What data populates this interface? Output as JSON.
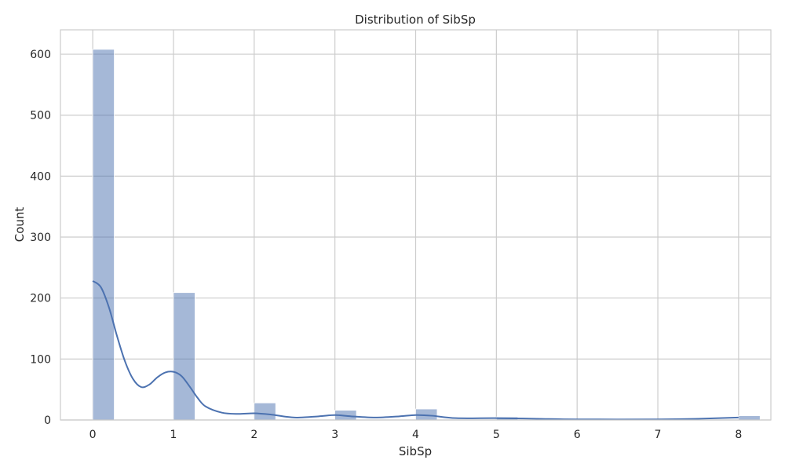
{
  "chart_data": {
    "type": "bar",
    "title": "Distribution of SibSp",
    "xlabel": "SibSp",
    "ylabel": "Count",
    "xlim": [
      -0.4,
      8.4
    ],
    "ylim": [
      0,
      640
    ],
    "x_ticks": [
      0,
      1,
      2,
      3,
      4,
      5,
      6,
      7,
      8
    ],
    "y_ticks": [
      0,
      100,
      200,
      300,
      400,
      500,
      600
    ],
    "bin_width": 0.2667,
    "bars": [
      {
        "x": 0,
        "value": 608
      },
      {
        "x": 1,
        "value": 209
      },
      {
        "x": 2,
        "value": 28
      },
      {
        "x": 3,
        "value": 16
      },
      {
        "x": 4,
        "value": 18
      },
      {
        "x": 5,
        "value": 5
      },
      {
        "x": 8,
        "value": 7
      }
    ],
    "kde": {
      "x": [
        0,
        0.1,
        0.2,
        0.3,
        0.4,
        0.5,
        0.6,
        0.7,
        0.8,
        0.9,
        1.0,
        1.1,
        1.2,
        1.3,
        1.4,
        1.6,
        1.8,
        2.0,
        2.2,
        2.5,
        2.8,
        3.0,
        3.2,
        3.5,
        3.8,
        4.0,
        4.2,
        4.5,
        5.0,
        5.5,
        6.0,
        7.0,
        7.5,
        8.0
      ],
      "y": [
        228,
        218,
        185,
        138,
        96,
        67,
        54,
        58,
        70,
        78,
        79,
        72,
        55,
        36,
        22,
        12,
        10,
        11,
        9,
        4,
        6,
        8,
        6,
        4,
        6,
        8,
        7,
        3,
        3,
        2,
        1,
        1,
        2,
        4
      ]
    },
    "grid": true,
    "colors": {
      "bar": "#4c72b0",
      "kde": "#4c72b0",
      "grid": "#cccccc",
      "text": "#262626"
    }
  }
}
